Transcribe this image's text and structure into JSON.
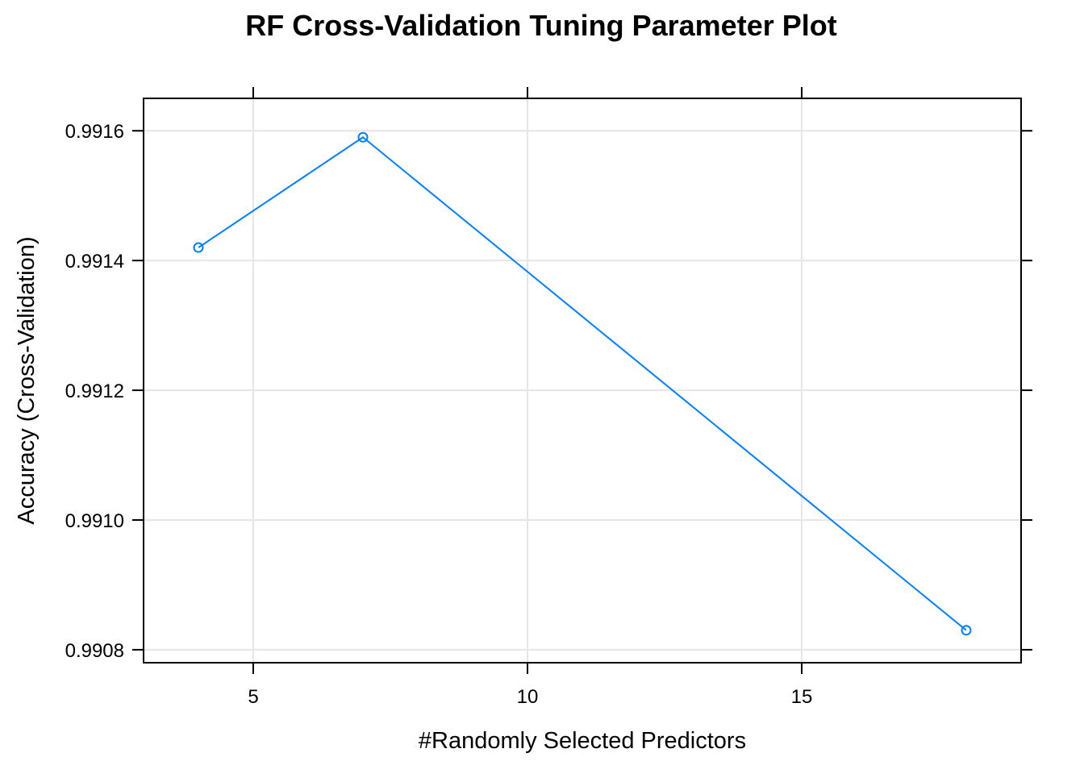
{
  "chart_data": {
    "type": "line",
    "title": "RF Cross-Validation Tuning Parameter Plot",
    "xlabel": "#Randomly Selected Predictors",
    "ylabel": "Accuracy (Cross-Validation)",
    "xlim": [
      3,
      19
    ],
    "ylim": [
      0.99078,
      0.99165
    ],
    "x_ticks": [
      5,
      10,
      15
    ],
    "x_tick_labels": [
      "5",
      "10",
      "15"
    ],
    "y_ticks": [
      0.9908,
      0.991,
      0.9912,
      0.9914,
      0.9916
    ],
    "y_tick_labels": [
      "0.9908",
      "0.9910",
      "0.9912",
      "0.9914",
      "0.9916"
    ],
    "grid": true,
    "series": [
      {
        "x": [
          4,
          7,
          18
        ],
        "y": [
          0.99142,
          0.99159,
          0.99083
        ],
        "color": "#0080ff",
        "marker": "open-circle"
      }
    ],
    "colors": {
      "grid": "#e6e6e6",
      "axis": "#000000",
      "series": "#0080ff"
    }
  }
}
